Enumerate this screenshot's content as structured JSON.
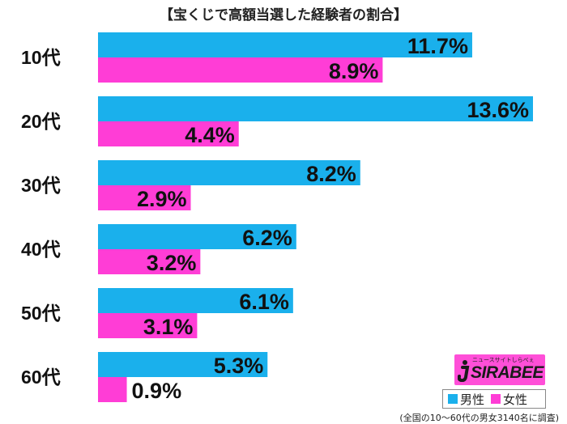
{
  "title": "【宝くじで高額当選した経験者の割合】",
  "footnote": "(全国の10〜60代の男女3140名に調査)",
  "logo": {
    "tagline": "ニュースサイトしらべぇ",
    "text": "SIRABEE"
  },
  "legend": [
    {
      "label": "男性",
      "color": "#1ab0ec"
    },
    {
      "label": "女性",
      "color": "#ff3dd6"
    }
  ],
  "chart_data": {
    "type": "bar",
    "orientation": "horizontal",
    "title": "【宝くじで高額当選した経験者の割合】",
    "categories": [
      "10代",
      "20代",
      "30代",
      "40代",
      "50代",
      "60代"
    ],
    "series": [
      {
        "name": "男性",
        "color": "#1ab0ec",
        "values": [
          11.7,
          13.6,
          8.2,
          6.2,
          6.1,
          5.3
        ],
        "labels": [
          "11.7%",
          "13.6%",
          "8.2%",
          "6.2%",
          "6.1%",
          "5.3%"
        ]
      },
      {
        "name": "女性",
        "color": "#ff3dd6",
        "values": [
          8.9,
          4.4,
          2.9,
          3.2,
          3.1,
          0.9
        ],
        "labels": [
          "8.9%",
          "4.4%",
          "2.9%",
          "3.2%",
          "3.1%",
          "0.9%"
        ]
      }
    ],
    "xlim": [
      0,
      13.6
    ],
    "unit": "%",
    "grid": false,
    "legend_position": "bottom-right"
  }
}
